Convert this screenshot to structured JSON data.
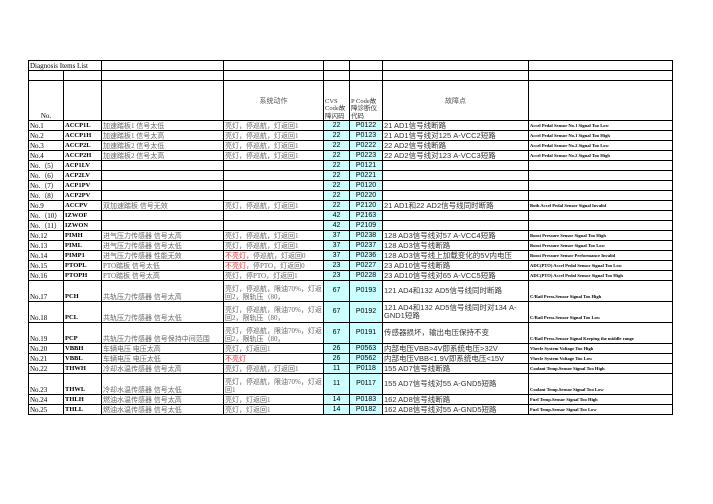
{
  "title": "Diagnosis Items List",
  "header": {
    "no": "No.",
    "action": "系统动作",
    "cvs_code": "CVS Code故障闪码",
    "p_code": "P Code故障诊断仪代码",
    "fault": "故障点"
  },
  "colors": {
    "code_fill": "#ccffff",
    "warning_text": "#e03030"
  },
  "rows": [
    {
      "no": "No.1",
      "code": "ACCP1L",
      "desc": "加速踏板1 信号太低",
      "action_red": "",
      "action": "亮灯，停巡航，灯返回1",
      "cvs": "22",
      "pcode": "P0122",
      "fault": "21 AD1信号线断路",
      "en": "Accel Pedal Sensor No.1 Signal Too Low"
    },
    {
      "no": "No.2",
      "code": "ACCP1H",
      "desc": "加速踏板1 信号太高",
      "action_red": "",
      "action": "亮灯，停巡航，灯返回1",
      "cvs": "22",
      "pcode": "P0123",
      "fault": "21 AD1信号线对125 A-VCC2短路",
      "en": "Accel Pedal Sensor No.1 Signal Too High"
    },
    {
      "no": "No.3",
      "code": "ACCP2L",
      "desc": "加速踏板2 信号太低",
      "action_red": "",
      "action": "亮灯，停巡航，灯返回1",
      "cvs": "22",
      "pcode": "P0222",
      "fault": "22 AD2信号线断路",
      "en": "Accel Pedal Sensor No.2 Signal Too Low"
    },
    {
      "no": "No.4",
      "code": "ACCP2H",
      "desc": "加速踏板2 信号太高",
      "action_red": "",
      "action": "亮灯，停巡航，灯返回1",
      "cvs": "22",
      "pcode": "P0223",
      "fault": "22 AD2信号线对123 A-VCC3短路",
      "en": "Accel Pedal Sensor No.2 Signal Too High"
    },
    {
      "no": "No.（5）",
      "code": "ACP1LV",
      "desc": "",
      "action_red": "",
      "action": "",
      "cvs": "22",
      "pcode": "P0121",
      "fault": "",
      "en": ""
    },
    {
      "no": "No.（6）",
      "code": "ACP2LV",
      "desc": "",
      "action_red": "",
      "action": "",
      "cvs": "22",
      "pcode": "P0221",
      "fault": "",
      "en": ""
    },
    {
      "no": "No.（7）",
      "code": "ACP1PV",
      "desc": "",
      "action_red": "",
      "action": "",
      "cvs": "22",
      "pcode": "P0120",
      "fault": "",
      "en": ""
    },
    {
      "no": "No.（8）",
      "code": "ACP2PV",
      "desc": "",
      "action_red": "",
      "action": "",
      "cvs": "22",
      "pcode": "P0220",
      "fault": "",
      "en": ""
    },
    {
      "no": "No.9",
      "code": "ACCPV",
      "desc": "双加速踏板 信号无效",
      "action_red": "",
      "action": "亮灯，停巡航，灯返回1",
      "cvs": "22",
      "pcode": "P2120",
      "fault": "21 AD1和22 AD2信号线同时断路",
      "en": "Both Accel Pedal Sensor Signal Invalid"
    },
    {
      "no": "No.（10）",
      "code": "IZWOF",
      "desc": "",
      "action_red": "",
      "action": "",
      "cvs": "42",
      "pcode": "P2163",
      "fault": "",
      "en": ""
    },
    {
      "no": "No.（11）",
      "code": "IZWON",
      "desc": "",
      "action_red": "",
      "action": "",
      "cvs": "42",
      "pcode": "P2109",
      "fault": "",
      "en": ""
    },
    {
      "no": "No.12",
      "code": "PIMH",
      "desc": "进气压力传感器 信号太高",
      "action_red": "",
      "action": "亮灯，停巡航，灯返回1",
      "cvs": "37",
      "pcode": "P0238",
      "fault": "128 AD3信号线对57 A-VCC4短路",
      "en": "Boost Pressure Sensor Signal Too High"
    },
    {
      "no": "No.13",
      "code": "PIML",
      "desc": "进气压力传感器 信号太低",
      "action_red": "",
      "action": "亮灯，停巡航，灯返回1",
      "cvs": "37",
      "pcode": "P0237",
      "fault": "128 AD3信号线断路",
      "en": "Boost Pressure Sensor Signal Too Low"
    },
    {
      "no": "No.14",
      "code": "PIMP1",
      "desc": "进气压力传感器 性能无效",
      "action_red": "不亮灯，",
      "action": "停巡航，灯返回0",
      "cvs": "37",
      "pcode": "P0236",
      "fault": "128 AD3信号线上加载变化的5V内电压",
      "en": "Boost Pressure Sensor Performance Invalid"
    },
    {
      "no": "No.15",
      "code": "PTOPL",
      "desc": "PTO踏板 信号太低",
      "action_red": "不亮灯，",
      "action": "停PTO，灯返回0",
      "cvs": "23",
      "pcode": "P0227",
      "fault": "23 AD10信号线断路",
      "en": "ADC(PTO) Accel Pedal Sensor Signal Too Low"
    },
    {
      "no": "No.16",
      "code": "PTOPH",
      "desc": "PTO踏板 信号太高",
      "action_red": "",
      "action": "亮灯，停PTO，灯返回1",
      "cvs": "23",
      "pcode": "P0228",
      "fault": "23 AD10信号线对65 A-VCC5短路",
      "en": "ADC(PTO) Accel Pedal Sensor Signal Too High"
    },
    {
      "no": "No.17",
      "code": "PCH",
      "desc": "共轨压力传感器 信号太高",
      "action_red": "",
      "action": "亮灯，停巡航，限油70%，灯返回2，限轨压（80，",
      "cvs": "67",
      "pcode": "P0193",
      "fault": "121 AD4和132 AD5信号线同时断路",
      "en": "C/Rail Press.Sensor Signal Too High",
      "tall": true
    },
    {
      "no": "No.18",
      "code": "PCL",
      "desc": "共轨压力传感器 信号太低",
      "action_red": "",
      "action": "亮灯，停巡航，限油70%，灯返回2，限轨压（80，",
      "cvs": "67",
      "pcode": "P0192",
      "fault": "121 AD4和132 AD5信号线同时对134 A-GND1短路",
      "en": "C/Rail Press.Sensor Signal Too Low",
      "tall": true
    },
    {
      "no": "No.19",
      "code": "PCP",
      "desc": "共轨压力传感器 信号保持中间范围",
      "action_red": "",
      "action": "亮灯，停巡航，限油70%，灯返回2，限轨压（80，",
      "cvs": "67",
      "pcode": "P0191",
      "fault": "传感器损坏，输出电压保持不变",
      "en": "C/Rail Press.Sensor Signal Keeping the middle range",
      "tall": true
    },
    {
      "no": "No.20",
      "code": "VBBH",
      "desc": "车辆电压 电压太高",
      "action_red": "",
      "action": "亮灯，灯返回1",
      "cvs": "26",
      "pcode": "P0563",
      "fault": "内部电压VBB>4V即系统电压>32V",
      "en": "Vhecle System Voltage Too High"
    },
    {
      "no": "No.21",
      "code": "VBBL",
      "desc": "车辆电压 电压太低",
      "action_red": "不亮灯",
      "action": "",
      "cvs": "26",
      "pcode": "P0562",
      "fault": "内部电压VBB<1.9V即系统电压<15V",
      "en": "Vhecle System Voltage Too Low"
    },
    {
      "no": "No.22",
      "code": "THWH",
      "desc": "冷却水温传感器 信号太高",
      "action_red": "",
      "action": "亮灯，停巡航，灯返回1",
      "cvs": "11",
      "pcode": "P0118",
      "fault": "155 AD7信号线断路",
      "en": "Coolant Temp.Sensor Signal Too High"
    },
    {
      "no": "No.23",
      "code": "THWL",
      "desc": "冷却水温传感器 信号太低",
      "action_red": "",
      "action": "亮灯，停巡航，限油70%，灯返回1",
      "cvs": "11",
      "pcode": "P0117",
      "fault": "155 AD7信号线对55 A-GND5短路",
      "en": "Coolant Temp.Sensor Signal Too Low",
      "tall": true
    },
    {
      "no": "No.24",
      "code": "THLH",
      "desc": "燃油水温传感器 信号太高",
      "action_red": "",
      "action": "亮灯，灯返回1",
      "cvs": "14",
      "pcode": "P0183",
      "fault": "162 AD8信号线断路",
      "en": "Fuel Temp.Sensor Signal Too High"
    },
    {
      "no": "No.25",
      "code": "THLL",
      "desc": "燃油水温传感器 信号太低",
      "action_red": "",
      "action": "亮灯，灯返回1",
      "cvs": "14",
      "pcode": "P0182",
      "fault": "162 AD8信号线对55 A-GND5短路",
      "en": "Fuel Temp.Sensor Signal Too Low"
    }
  ]
}
